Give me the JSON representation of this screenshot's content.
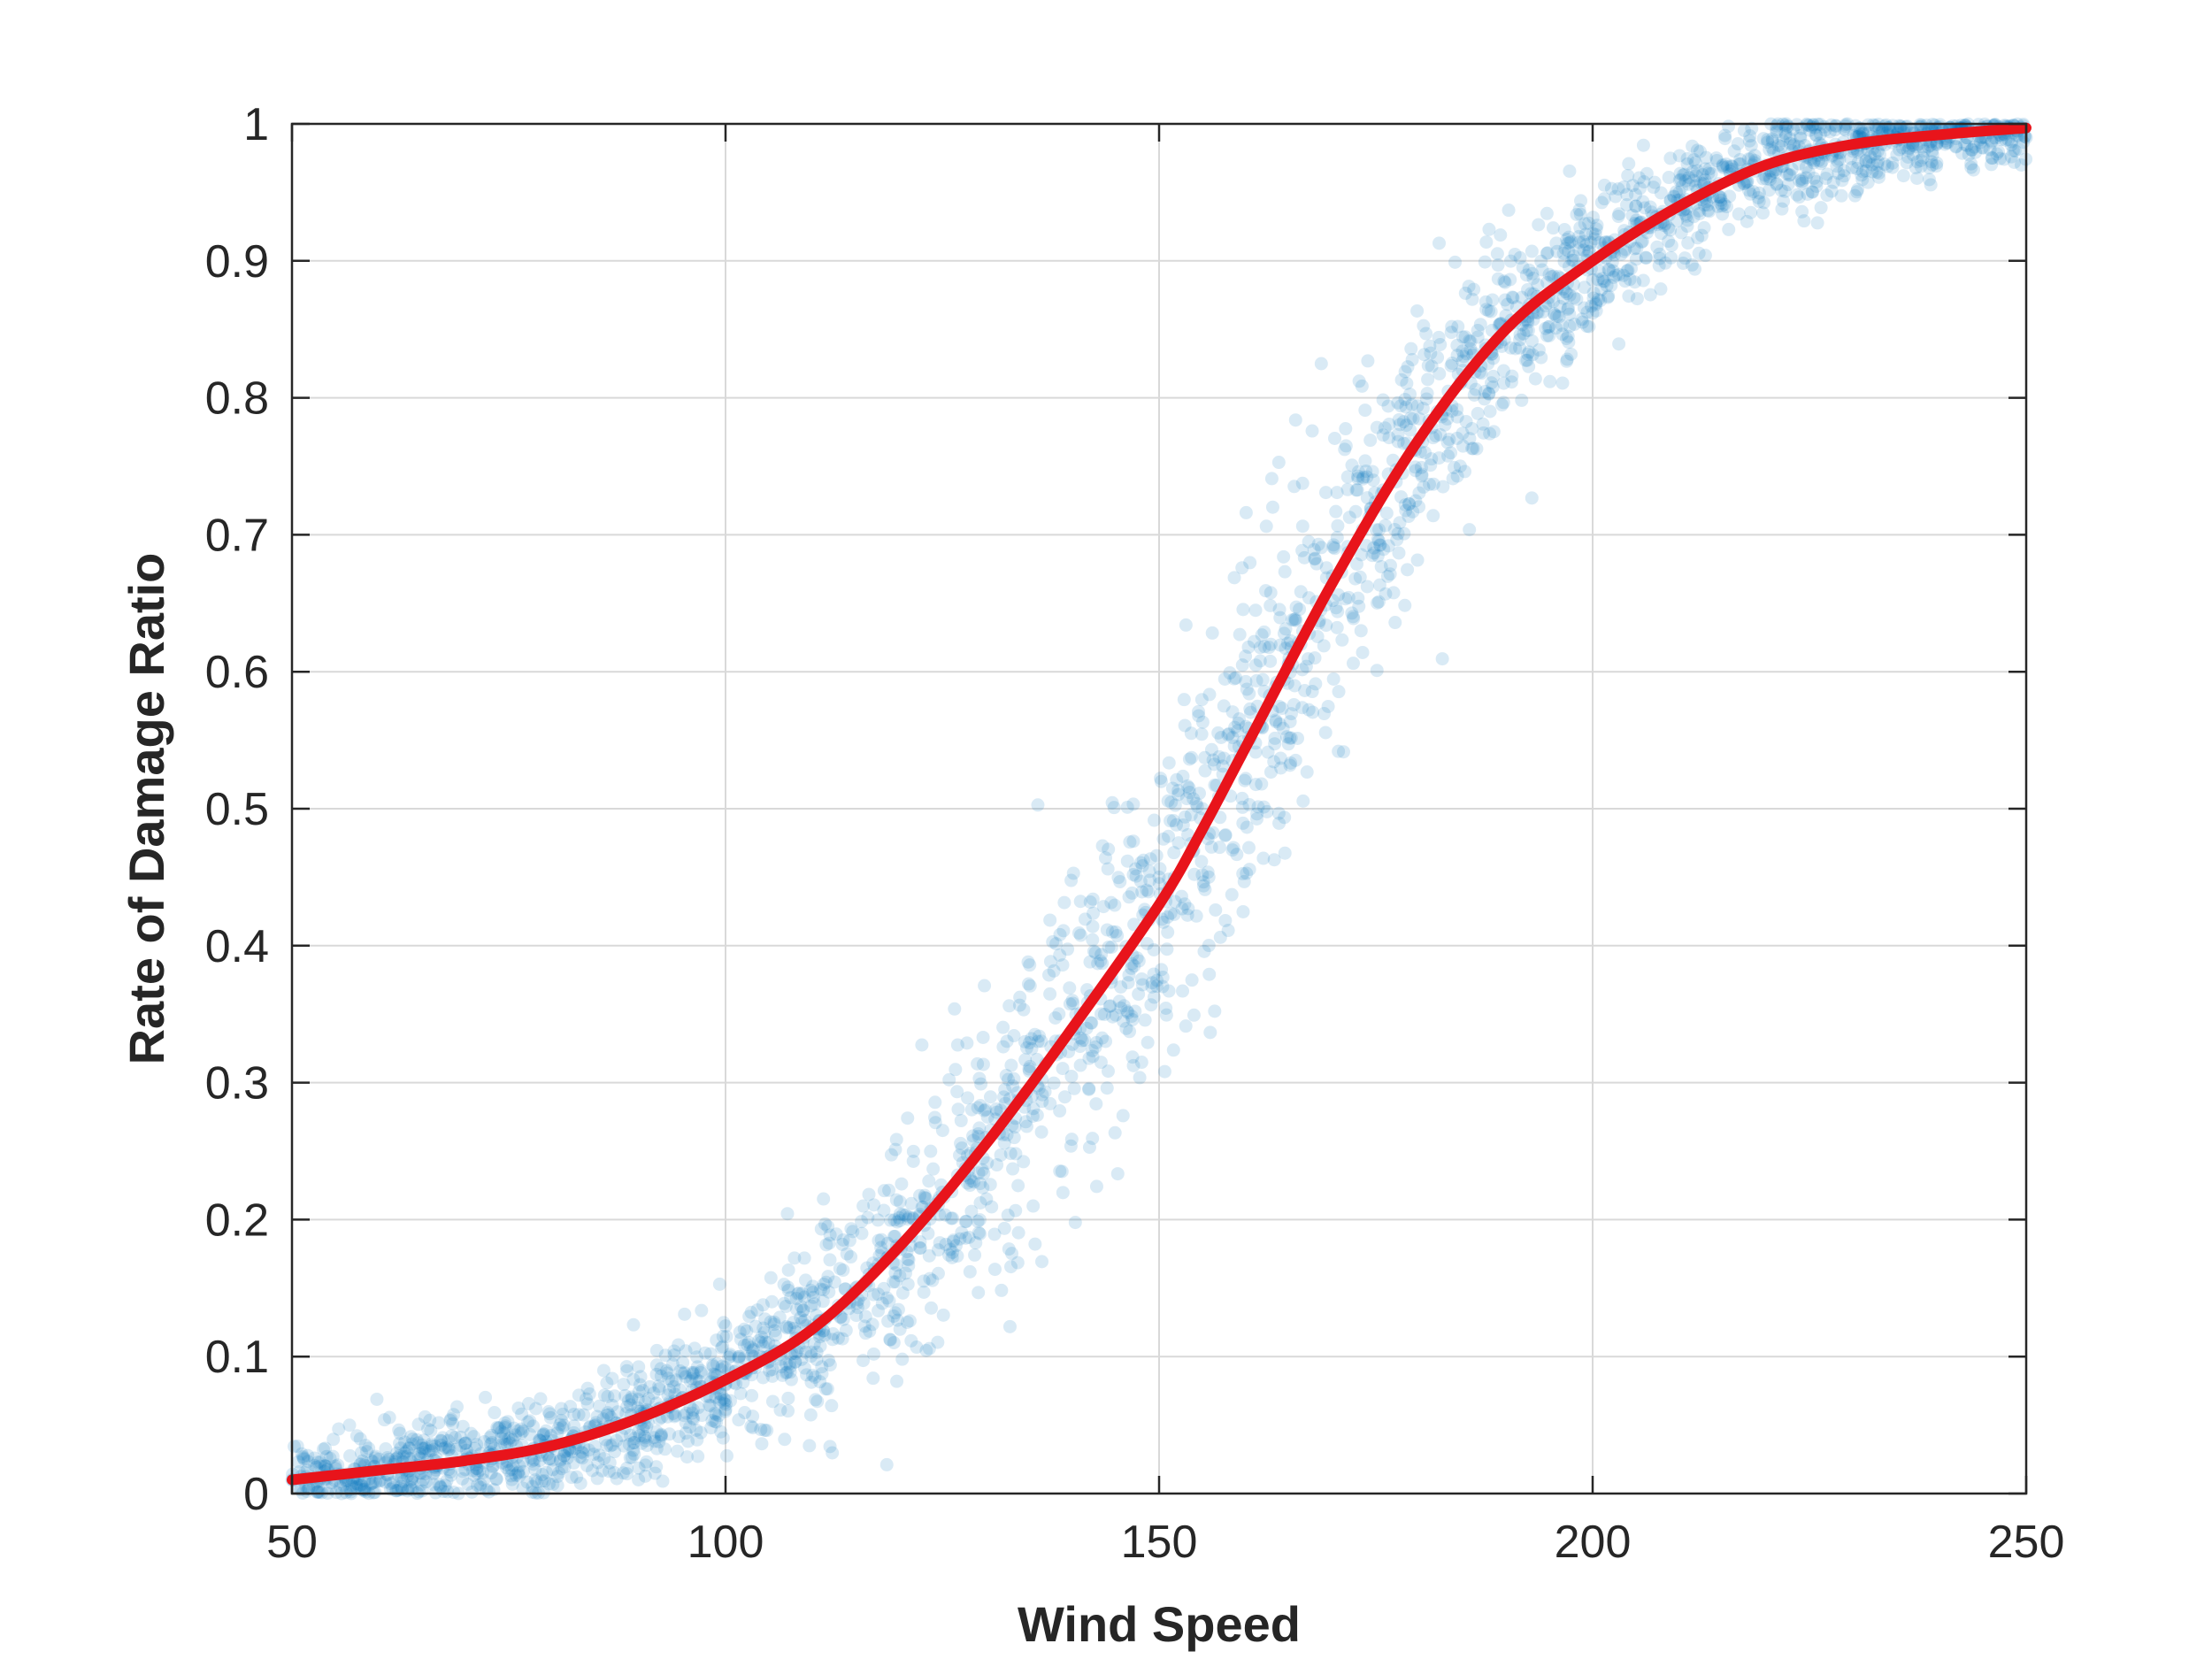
{
  "chart_data": {
    "type": "scatter",
    "title": "",
    "xlabel": "Wind Speed",
    "ylabel": "Rate of Damage Ratio",
    "xlim": [
      50,
      250
    ],
    "ylim": [
      0,
      1
    ],
    "xticks": [
      50,
      100,
      150,
      200,
      250
    ],
    "xtick_labels": [
      "50",
      "100",
      "150",
      "200",
      "250"
    ],
    "yticks": [
      0,
      0.1,
      0.2,
      0.3,
      0.4,
      0.5,
      0.6,
      0.7,
      0.8,
      0.9,
      1
    ],
    "ytick_labels": [
      "0",
      "0.1",
      "0.2",
      "0.3",
      "0.4",
      "0.5",
      "0.6",
      "0.7",
      "0.8",
      "0.9",
      "1"
    ],
    "grid": true,
    "legend": "none",
    "series": [
      {
        "kind": "scatter",
        "color": "#0072BD",
        "opacity": 0.15,
        "description_of_model": "noisy samples around fitted curve",
        "points": [
          [
            50,
            0.01
          ],
          [
            55,
            0.02
          ],
          [
            60,
            0.015
          ],
          [
            65,
            0.03
          ],
          [
            70,
            0.025
          ],
          [
            75,
            0.04
          ],
          [
            80,
            0.035
          ],
          [
            85,
            0.05
          ],
          [
            90,
            0.06
          ],
          [
            95,
            0.07
          ],
          [
            100,
            0.08
          ],
          [
            105,
            0.1
          ],
          [
            110,
            0.12
          ],
          [
            115,
            0.15
          ],
          [
            120,
            0.18
          ],
          [
            125,
            0.22
          ],
          [
            130,
            0.26
          ],
          [
            135,
            0.31
          ],
          [
            140,
            0.36
          ],
          [
            145,
            0.41
          ],
          [
            150,
            0.45
          ],
          [
            155,
            0.5
          ],
          [
            160,
            0.56
          ],
          [
            165,
            0.61
          ],
          [
            170,
            0.67
          ],
          [
            175,
            0.72
          ],
          [
            180,
            0.77
          ],
          [
            185,
            0.82
          ],
          [
            190,
            0.86
          ],
          [
            195,
            0.89
          ],
          [
            200,
            0.92
          ],
          [
            205,
            0.94
          ],
          [
            210,
            0.95
          ],
          [
            215,
            0.97
          ],
          [
            220,
            0.97
          ],
          [
            225,
            0.98
          ],
          [
            230,
            0.98
          ],
          [
            235,
            0.99
          ],
          [
            240,
            0.99
          ],
          [
            245,
            0.99
          ],
          [
            250,
            0.99
          ]
        ]
      },
      {
        "kind": "line",
        "color": "#E8141B",
        "x": [
          50,
          60,
          70,
          80,
          90,
          100,
          110,
          120,
          130,
          140,
          150,
          155,
          160,
          170,
          180,
          190,
          200,
          210,
          220,
          230,
          240,
          250
        ],
        "y": [
          0.01,
          0.017,
          0.024,
          0.035,
          0.055,
          0.083,
          0.12,
          0.18,
          0.255,
          0.34,
          0.43,
          0.485,
          0.545,
          0.665,
          0.77,
          0.85,
          0.9,
          0.94,
          0.97,
          0.985,
          0.992,
          0.997
        ]
      }
    ]
  }
}
